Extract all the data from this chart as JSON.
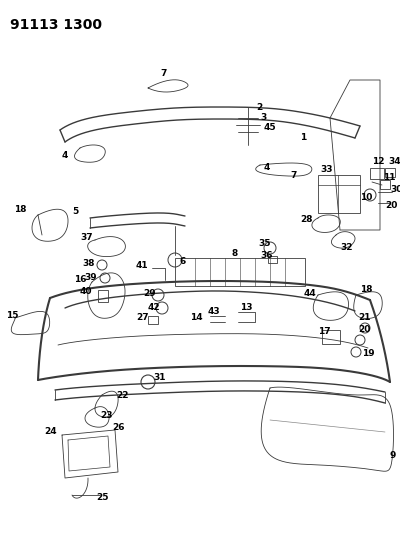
{
  "title": "91113 1300",
  "bg_color": "#ffffff",
  "line_color": "#3a3a3a",
  "text_color": "#000000",
  "title_fontsize": 10,
  "label_fontsize": 6.5
}
